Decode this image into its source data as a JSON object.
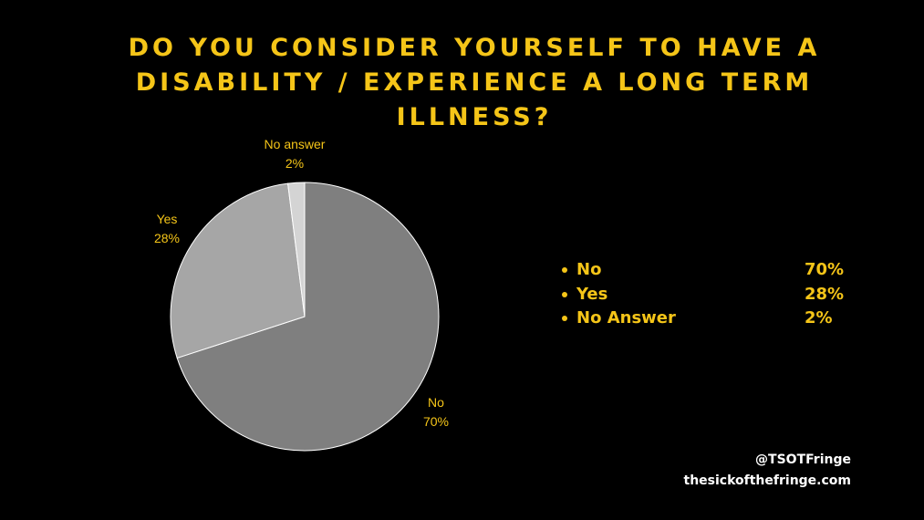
{
  "title": "DO YOU CONSIDER YOURSELF TO HAVE A\nDISABILITY / EXPERIENCE A LONG TERM\nILLNESS?",
  "chart_data": {
    "type": "pie",
    "title": "DO YOU CONSIDER YOURSELF TO HAVE A DISABILITY / EXPERIENCE A LONG TERM ILLNESS?",
    "slices": [
      {
        "label": "No",
        "value": 70,
        "value_label": "70%",
        "color": "#7f7f7f"
      },
      {
        "label": "Yes",
        "value": 28,
        "value_label": "28%",
        "color": "#a6a6a6"
      },
      {
        "label": "No answer",
        "value": 2,
        "value_label": "2%",
        "color": "#d4d4d4"
      }
    ],
    "start": "12 o'clock",
    "direction": "clockwise"
  },
  "legend": [
    {
      "label": "No",
      "value": "70%"
    },
    {
      "label": "Yes",
      "value": "28%"
    },
    {
      "label": "No Answer",
      "value": "2%"
    }
  ],
  "footer": {
    "handle": "@TSOTFringe",
    "website": "thesickofthefringe.com"
  },
  "colors": {
    "background": "#000000",
    "accent": "#f5c518",
    "footer_text": "#ffffff"
  }
}
